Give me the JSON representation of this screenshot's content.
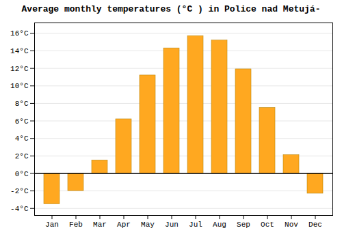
{
  "chart_data": {
    "type": "bar",
    "title": "Average monthly temperatures (°C ) in Police nad Metujá-",
    "categories": [
      "Jan",
      "Feb",
      "Mar",
      "Apr",
      "May",
      "Jun",
      "Jul",
      "Aug",
      "Sep",
      "Oct",
      "Nov",
      "Dec"
    ],
    "values": [
      -3.5,
      -2.0,
      1.5,
      6.2,
      11.2,
      14.3,
      15.7,
      15.2,
      11.9,
      7.5,
      2.1,
      -2.3
    ],
    "color": "#FFA820",
    "ylim": [
      -4.8,
      17.2
    ],
    "yticks": [
      {
        "value": -4,
        "label": "-4°C"
      },
      {
        "value": -2,
        "label": "-2°C"
      },
      {
        "value": 0,
        "label": "0°C"
      },
      {
        "value": 2,
        "label": "2°C"
      },
      {
        "value": 4,
        "label": "4°C"
      },
      {
        "value": 6,
        "label": "6°C"
      },
      {
        "value": 8,
        "label": "8°C"
      },
      {
        "value": 10,
        "label": "10°C"
      },
      {
        "value": 12,
        "label": "12°C"
      },
      {
        "value": 14,
        "label": "14°C"
      },
      {
        "value": 16,
        "label": "16°C"
      }
    ],
    "grid": true
  }
}
